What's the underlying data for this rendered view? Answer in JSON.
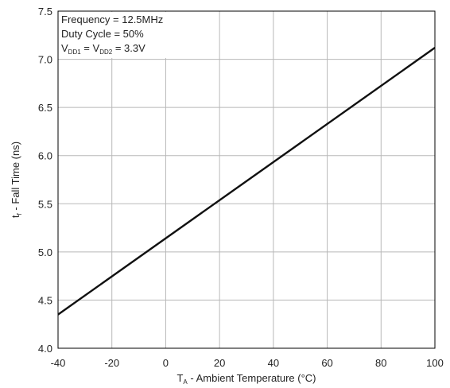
{
  "chart_data": {
    "type": "line",
    "title": "",
    "xlabel": {
      "main": "T",
      "sub": "A",
      "rest": " - Ambient Temperature (°C)"
    },
    "ylabel": {
      "main": "t",
      "sub": "f",
      "rest": " - Fall Time (ns)"
    },
    "xlim": [
      -40,
      100
    ],
    "ylim": [
      4.0,
      7.5
    ],
    "xticks": [
      -40,
      -20,
      0,
      20,
      40,
      60,
      80,
      100
    ],
    "yticks": [
      4.0,
      4.5,
      5.0,
      5.5,
      6.0,
      6.5,
      7.0,
      7.5
    ],
    "xtick_labels": [
      "-40",
      "-20",
      "0",
      "20",
      "40",
      "60",
      "80",
      "100"
    ],
    "ytick_labels": [
      "4.0",
      "4.5",
      "5.0",
      "5.5",
      "6.0",
      "6.5",
      "7.0",
      "7.5"
    ],
    "grid": true,
    "annotation": {
      "line1": "Frequency = 12.5MHz",
      "line2": "Duty Cycle = 50%",
      "line3": {
        "v1": "V",
        "s1": "DD1",
        "mid": " = V",
        "s2": "DD2",
        "end": " = 3.3V"
      }
    },
    "series": [
      {
        "x": [
          -40,
          100
        ],
        "y": [
          4.35,
          7.12
        ],
        "color": "#111111"
      }
    ]
  }
}
